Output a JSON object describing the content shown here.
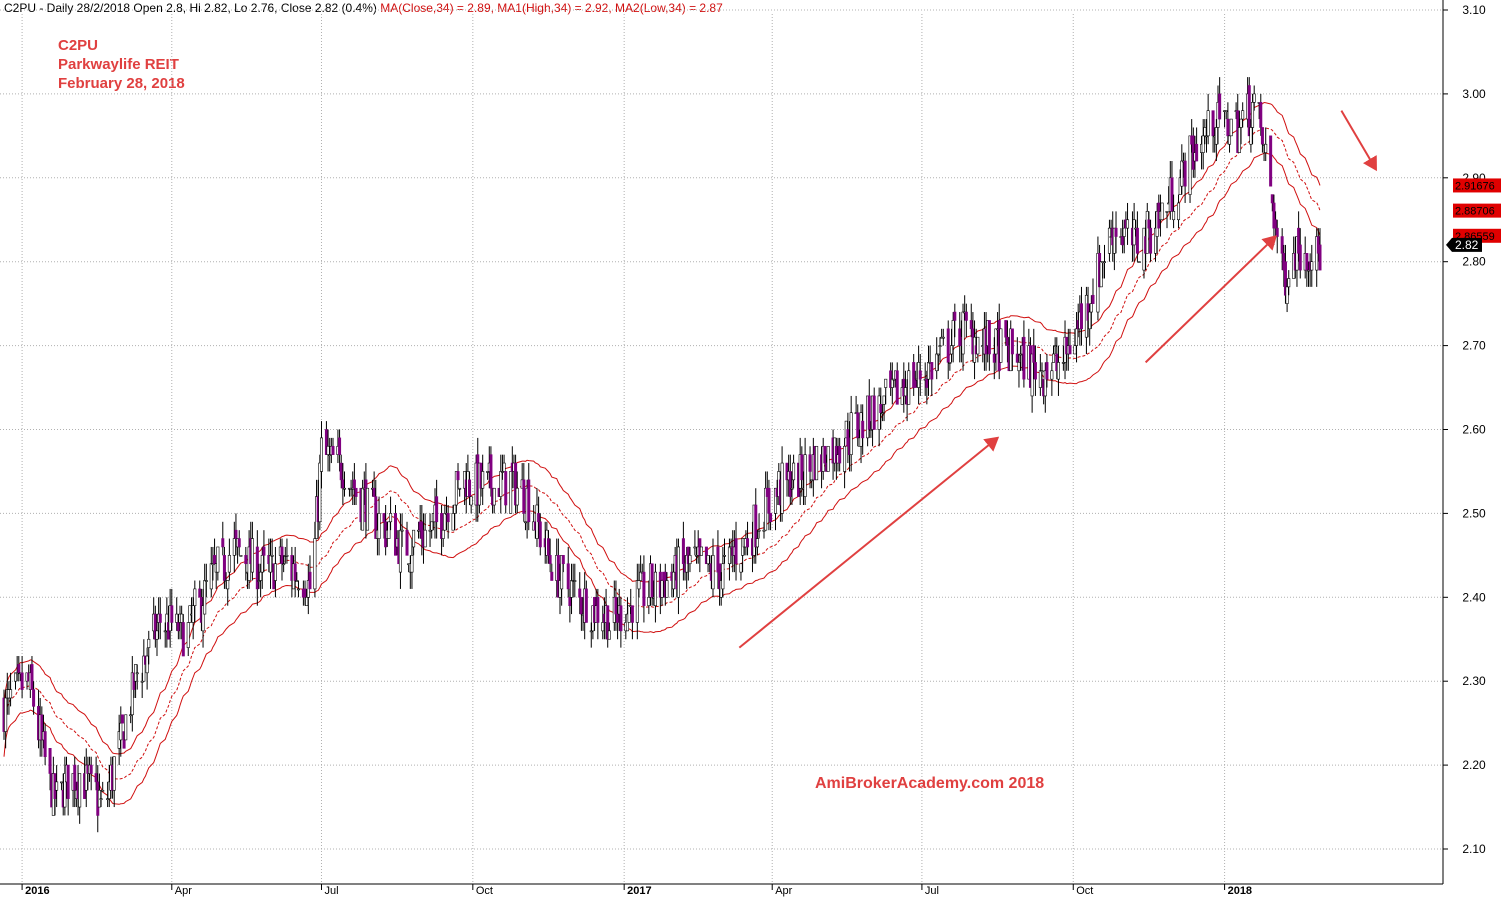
{
  "header": {
    "prefix": "C2PU - Daily 28/2/2018 Open 2.8, Hi 2.82, Lo 2.76, Close 2.82 (0.4%)",
    "ma_close": "MA(Close,34) = 2.89,",
    "ma_high": "MA1(High,34) = 2.92,",
    "ma_low": "MA2(Low,34) = 2.87"
  },
  "watermark": {
    "line1": "C2PU",
    "line2": "Parkwaylife REIT",
    "line3": "February 28, 2018",
    "site": "AmiBrokerAcademy.com  2018"
  },
  "colors": {
    "candle": "#800080",
    "ma": "#d01010",
    "grid": "#b0b0b0",
    "arrow": "#e04040",
    "label_bg": "#e00000",
    "last_bg": "#000000"
  },
  "chart_data": {
    "type": "candlestick",
    "ylim": [
      2.05,
      3.12
    ],
    "yticks": [
      "2.10",
      "2.20",
      "2.30",
      "2.40",
      "2.50",
      "2.60",
      "2.70",
      "2.80",
      "2.90",
      "3.00",
      "3.10"
    ],
    "xticks": [
      {
        "label": "2016",
        "date": "2016-01-01",
        "year": true
      },
      {
        "label": "Apr",
        "date": "2016-04-01",
        "year": false
      },
      {
        "label": "Jul",
        "date": "2016-07-01",
        "year": false
      },
      {
        "label": "Oct",
        "date": "2016-10-01",
        "year": false
      },
      {
        "label": "2017",
        "date": "2017-01-01",
        "year": true
      },
      {
        "label": "Apr",
        "date": "2017-04-01",
        "year": false
      },
      {
        "label": "Jul",
        "date": "2017-07-01",
        "year": false
      },
      {
        "label": "Oct",
        "date": "2017-10-01",
        "year": false
      },
      {
        "label": "2018",
        "date": "2018-01-01",
        "year": true
      }
    ],
    "start_date": "2015-12-21",
    "end_date": "2018-02-28",
    "price_path": [
      [
        "2015-12-21",
        2.27
      ],
      [
        "2016-01-05",
        2.3
      ],
      [
        "2016-01-20",
        2.16
      ],
      [
        "2016-02-05",
        2.19
      ],
      [
        "2016-02-20",
        2.15
      ],
      [
        "2016-03-10",
        2.3
      ],
      [
        "2016-03-25",
        2.37
      ],
      [
        "2016-04-10",
        2.36
      ],
      [
        "2016-04-25",
        2.42
      ],
      [
        "2016-05-10",
        2.46
      ],
      [
        "2016-05-25",
        2.43
      ],
      [
        "2016-06-10",
        2.44
      ],
      [
        "2016-06-25",
        2.41
      ],
      [
        "2016-07-01",
        2.57
      ],
      [
        "2016-07-15",
        2.55
      ],
      [
        "2016-08-01",
        2.5
      ],
      [
        "2016-08-20",
        2.46
      ],
      [
        "2016-09-10",
        2.49
      ],
      [
        "2016-09-25",
        2.54
      ],
      [
        "2016-10-10",
        2.53
      ],
      [
        "2016-10-25",
        2.54
      ],
      [
        "2016-11-05",
        2.51
      ],
      [
        "2016-11-20",
        2.43
      ],
      [
        "2016-12-05",
        2.4
      ],
      [
        "2016-12-25",
        2.37
      ],
      [
        "2017-01-10",
        2.4
      ],
      [
        "2017-01-25",
        2.42
      ],
      [
        "2017-02-10",
        2.44
      ],
      [
        "2017-03-01",
        2.43
      ],
      [
        "2017-03-20",
        2.48
      ],
      [
        "2017-04-05",
        2.53
      ],
      [
        "2017-04-20",
        2.55
      ],
      [
        "2017-05-10",
        2.58
      ],
      [
        "2017-06-01",
        2.62
      ],
      [
        "2017-06-20",
        2.65
      ],
      [
        "2017-07-10",
        2.68
      ],
      [
        "2017-07-25",
        2.72
      ],
      [
        "2017-08-10",
        2.7
      ],
      [
        "2017-08-25",
        2.69
      ],
      [
        "2017-09-10",
        2.67
      ],
      [
        "2017-09-25",
        2.68
      ],
      [
        "2017-10-10",
        2.75
      ],
      [
        "2017-10-25",
        2.84
      ],
      [
        "2017-11-10",
        2.82
      ],
      [
        "2017-11-25",
        2.86
      ],
      [
        "2017-12-10",
        2.92
      ],
      [
        "2017-12-25",
        2.97
      ],
      [
        "2018-01-10",
        2.96
      ],
      [
        "2018-01-20",
        2.99
      ],
      [
        "2018-01-28",
        2.9
      ],
      [
        "2018-02-05",
        2.78
      ],
      [
        "2018-02-15",
        2.82
      ],
      [
        "2018-02-28",
        2.81
      ]
    ],
    "last_values": [
      "2.91676",
      "2.88706",
      "2.86559"
    ],
    "last_close": "2.82",
    "moving_average_period": 34,
    "band_offset": 0.03,
    "arrows": [
      {
        "from": [
          "2017-03-12",
          2.34
        ],
        "to": [
          "2017-08-16",
          2.59
        ]
      },
      {
        "from": [
          "2017-11-14",
          2.68
        ],
        "to": [
          "2018-02-01",
          2.83
        ]
      },
      {
        "from": [
          "2018-03-13",
          2.98
        ],
        "to": [
          "2018-04-03",
          2.91
        ]
      }
    ]
  }
}
